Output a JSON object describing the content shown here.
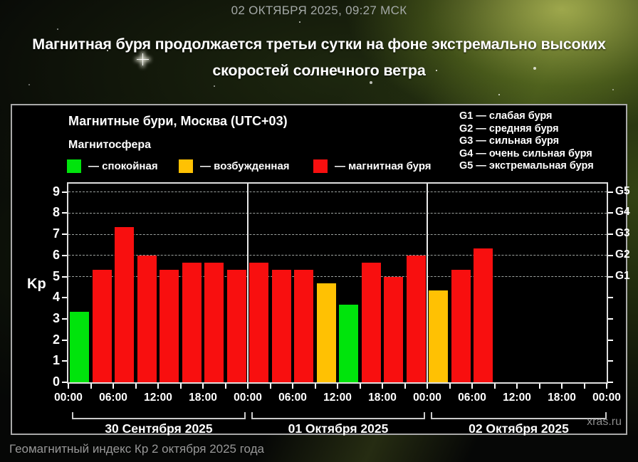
{
  "header": {
    "datetime": "02 ОКТЯБРЯ 2025, 09:27 МСК",
    "title": "Магнитная буря продолжается третьи сутки на фоне экстремально высоких скоростей солнечного ветра"
  },
  "panel": {
    "chart_title": "Магнитные бури, Москва (UTC+03)",
    "subtitle": "Магнитосфера",
    "legend": [
      {
        "key": "quiet",
        "label": "— спокойная",
        "color": "#00e40c"
      },
      {
        "key": "active",
        "label": "— возбужденная",
        "color": "#ffc103"
      },
      {
        "key": "storm",
        "label": "— магнитная буря",
        "color": "#f80f0f"
      }
    ],
    "g_legend": [
      "G1 — слабая буря",
      "G2 — средняя буря",
      "G3 — сильная буря",
      "G4 — очень сильная буря",
      "G5 — экстремальная буря"
    ],
    "watermark": "xras.ru"
  },
  "chart_data": {
    "type": "bar",
    "title": "Магнитные бури, Москва (UTC+03)",
    "ylabel": "Kp",
    "ylim": [
      0,
      9.4
    ],
    "y_ticks": [
      0,
      1,
      2,
      3,
      4,
      5,
      6,
      7,
      8,
      9
    ],
    "grid_levels": [
      5,
      6,
      7,
      8,
      9
    ],
    "grid": "dashed horizontal at G-levels only",
    "right_axis": [
      {
        "label": "G1",
        "kp": 5
      },
      {
        "label": "G2",
        "kp": 6
      },
      {
        "label": "G3",
        "kp": 7
      },
      {
        "label": "G4",
        "kp": 8
      },
      {
        "label": "G5",
        "kp": 9
      }
    ],
    "x_tick_labels": [
      "00:00",
      "06:00",
      "12:00",
      "18:00",
      "00:00",
      "06:00",
      "12:00",
      "18:00",
      "00:00",
      "06:00",
      "12:00",
      "18:00",
      "00:00"
    ],
    "slot_hours": 3,
    "colors": {
      "quiet": "#00e40c",
      "active": "#ffc103",
      "storm": "#f80f0f"
    },
    "days": [
      {
        "date": "30 Сентября 2025",
        "values": [
          3.33,
          5.33,
          7.33,
          6.0,
          5.33,
          5.67,
          5.67,
          5.33
        ],
        "colors": [
          "quiet",
          "storm",
          "storm",
          "storm",
          "storm",
          "storm",
          "storm",
          "storm"
        ]
      },
      {
        "date": "01 Октября 2025",
        "values": [
          5.67,
          5.33,
          5.33,
          4.67,
          3.67,
          5.67,
          5.0,
          6.0
        ],
        "colors": [
          "storm",
          "storm",
          "storm",
          "active",
          "quiet",
          "storm",
          "storm",
          "storm"
        ]
      },
      {
        "date": "02 Октября 2025",
        "values": [
          4.33,
          5.33,
          6.33
        ],
        "colors": [
          "active",
          "storm",
          "storm"
        ]
      }
    ]
  },
  "caption": "Геомагнитный индекс Кр 2 октября 2025 года"
}
